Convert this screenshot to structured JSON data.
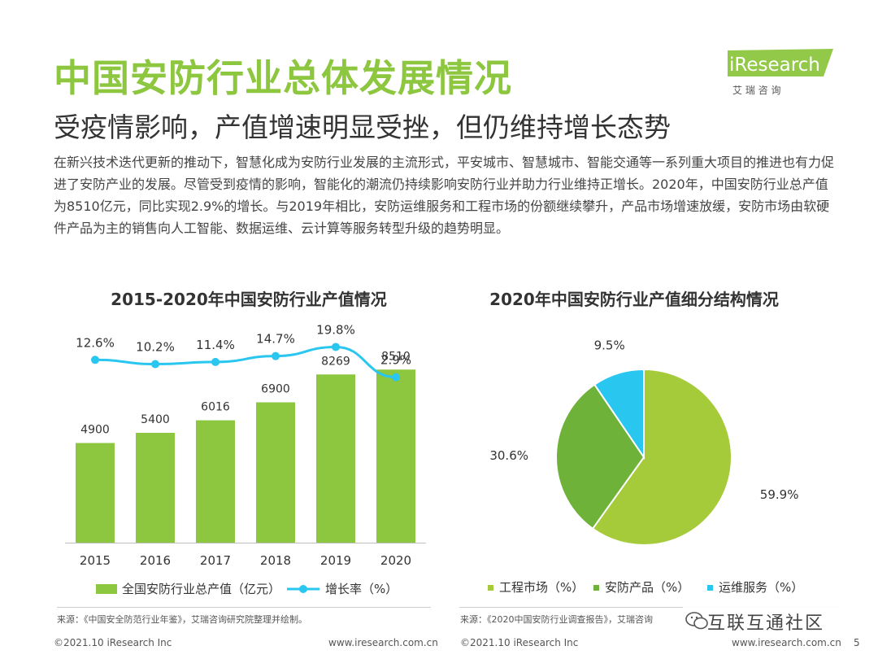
{
  "header": {
    "title": "中国安防行业总体发展情况",
    "subtitle": "受疫情影响，产值增速明显受挫，但仍维持增长态势",
    "intro": "在新兴技术迭代更新的推动下，智慧化成为安防行业发展的主流形式，平安城市、智慧城市、智能交通等一系列重大项目的推进也有力促进了安防产业的发展。尽管受到疫情的影响，智能化的潮流仍持续影响安防行业并助力行业维持正增长。2020年，中国安防行业总产值为8510亿元，同比实现2.9%的增长。与2019年相比，安防运维服务和工程市场的份额继续攀升，产品市场增速放缓，安防市场由软硬件产品为主的销售向人工智能、数据运维、云计算等服务转型升级的趋势明显。"
  },
  "logo": {
    "brand": "iResearch",
    "cn": "艾 瑞 咨 询",
    "color": "#8dc63f"
  },
  "colors": {
    "green": "#8dc63f",
    "dark_green": "#6fb23a",
    "cyan": "#29c6f0",
    "text": "#333333"
  },
  "chart_data": [
    {
      "type": "bar",
      "title": "2015-2020年中国安防行业产值情况",
      "categories": [
        "2015",
        "2016",
        "2017",
        "2018",
        "2019",
        "2020"
      ],
      "series": [
        {
          "name": "全国安防行业总产值（亿元）",
          "type": "bar",
          "values": [
            4900,
            5400,
            6016,
            6900,
            8269,
            8510
          ]
        },
        {
          "name": "增长率（%）",
          "type": "line",
          "values": [
            12.6,
            10.2,
            11.4,
            14.7,
            19.8,
            2.9
          ],
          "labels": [
            "12.6%",
            "10.2%",
            "11.4%",
            "14.7%",
            "19.8%",
            "2.9%"
          ]
        }
      ],
      "ylim": [
        0,
        10000
      ],
      "legend_position": "bottom",
      "grid": false
    },
    {
      "type": "pie",
      "title": "2020年中国安防行业产值细分结构情况",
      "categories": [
        "工程市场（%）",
        "安防产品（%）",
        "运维服务（%）"
      ],
      "values": [
        59.9,
        30.6,
        9.5
      ],
      "labels": [
        "59.9%",
        "30.6%",
        "9.5%"
      ],
      "colors": [
        "#a6cb3a",
        "#6fb23a",
        "#29c6f0"
      ],
      "legend_position": "bottom"
    }
  ],
  "sources": {
    "left": "来源：《中国安全防范行业年鉴》，艾瑞咨询研究院整理并绘制。",
    "right": "来源：《2020中国安防行业调查报告》，艾瑞咨询"
  },
  "footer": {
    "copyright": "©2021.10 iResearch Inc",
    "url": "www.iresearch.com.cn",
    "page": "5"
  },
  "watermark": {
    "text": "互联互通社区"
  }
}
